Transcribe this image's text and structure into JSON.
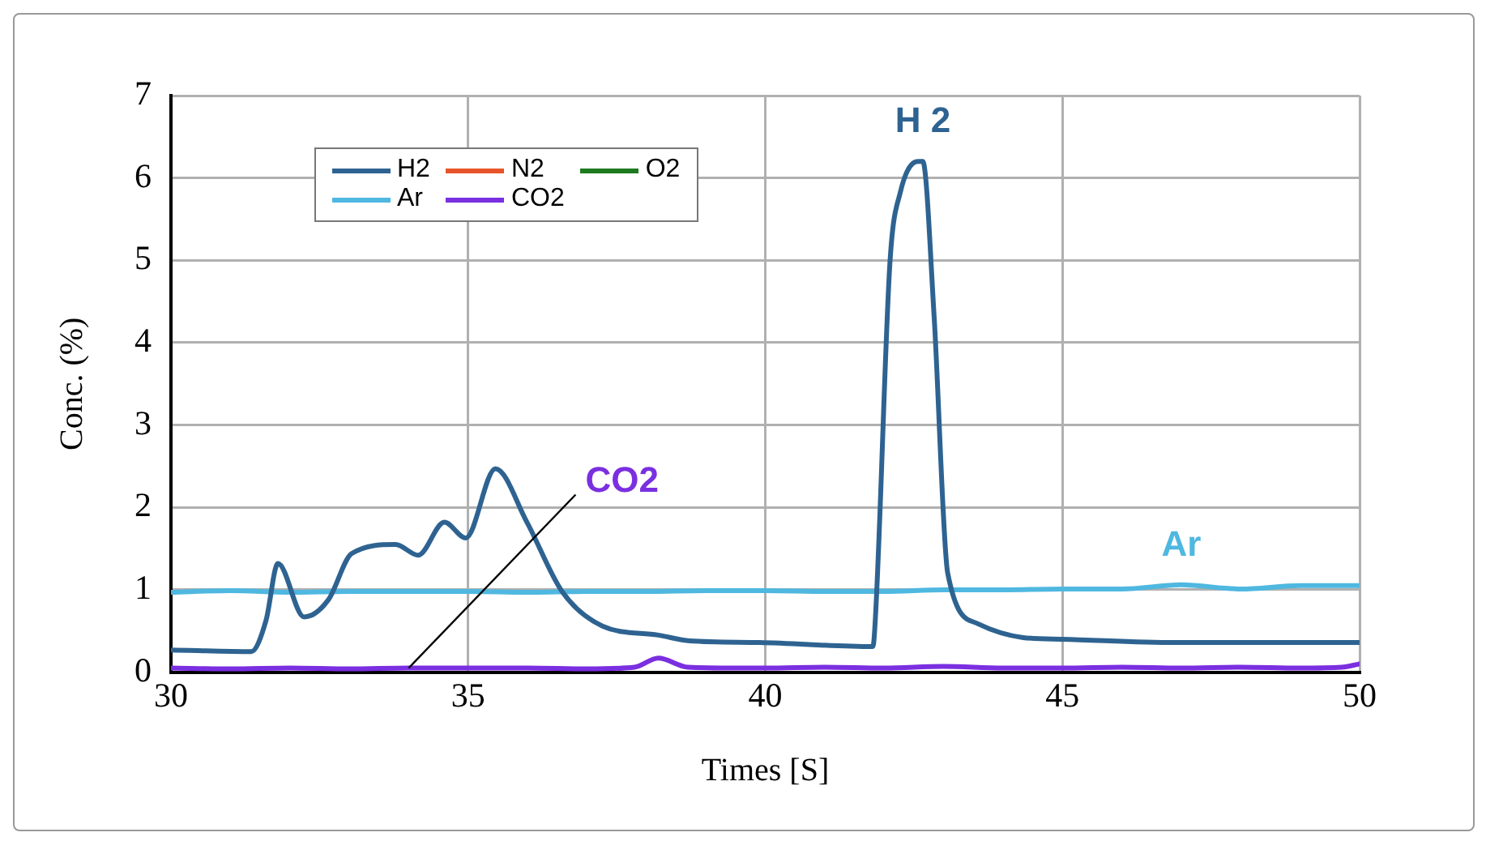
{
  "chart_data": {
    "type": "line",
    "xlabel": "Times [S]",
    "ylabel": "Conc. (%)",
    "xlim": [
      30,
      50
    ],
    "xticks": [
      30,
      35,
      40,
      45,
      50
    ],
    "ylim": [
      0,
      7
    ],
    "yticks": [
      0,
      1,
      2,
      3,
      4,
      5,
      6,
      7
    ],
    "grid": true,
    "legend": "top left",
    "marker": "none",
    "line_style": "solid",
    "series": [
      {
        "name": "H2",
        "color": "#2e6391",
        "x": [
          30,
          31.35,
          31.6,
          31.8,
          32.24,
          32.65,
          33.04,
          33.78,
          34.16,
          34.6,
          34.96,
          35.46,
          35.99,
          36.58,
          37.26,
          38.2,
          38.73,
          39.9,
          41.8,
          41.83,
          42.1,
          42.27,
          42.57,
          42.65,
          42.84,
          43.07,
          43.57,
          44.34,
          45,
          46.9,
          48.4,
          50
        ],
        "values": [
          0.27,
          0.25,
          0.63,
          1.32,
          0.67,
          0.88,
          1.44,
          1.55,
          1.42,
          1.82,
          1.63,
          2.47,
          1.82,
          0.98,
          0.56,
          0.45,
          0.38,
          0.36,
          0.31,
          0.4,
          5.0,
          5.82,
          6.2,
          6.2,
          4.33,
          1.2,
          0.59,
          0.42,
          0.4,
          0.36,
          0.36,
          0.36
        ]
      },
      {
        "name": "N2",
        "color": "#e8542a"
      },
      {
        "name": "O2",
        "color": "#1e7a1e"
      },
      {
        "name": "Ar",
        "color": "#4fb8e0",
        "x": [
          30,
          31,
          32,
          33,
          34,
          35,
          36,
          37,
          38,
          39,
          40,
          41,
          42,
          43,
          44,
          45,
          46,
          47,
          48,
          49,
          50
        ],
        "values": [
          0.97,
          0.99,
          0.97,
          0.98,
          0.98,
          0.98,
          0.97,
          0.98,
          0.98,
          0.99,
          0.99,
          0.98,
          0.98,
          1.0,
          1.0,
          1.01,
          1.01,
          1.06,
          1.01,
          1.05,
          1.05
        ]
      },
      {
        "name": "CO2",
        "color": "#7a2fe0",
        "x": [
          30,
          31,
          32,
          33,
          34,
          35,
          36,
          37,
          37.8,
          38.2,
          38.7,
          39.5,
          40,
          41,
          42,
          43,
          44,
          45,
          46,
          47,
          48,
          49,
          49.7,
          50
        ],
        "values": [
          0.05,
          0.04,
          0.05,
          0.04,
          0.05,
          0.05,
          0.05,
          0.04,
          0.06,
          0.17,
          0.06,
          0.05,
          0.05,
          0.06,
          0.05,
          0.07,
          0.05,
          0.05,
          0.06,
          0.05,
          0.06,
          0.05,
          0.06,
          0.1
        ]
      }
    ],
    "annotations": [
      {
        "text": "H 2",
        "x": 42.65,
        "y": 6.2
      },
      {
        "text": "CO2",
        "x": 34.0,
        "y": 0.05
      },
      {
        "text": "Ar",
        "x": 47,
        "y": 1.06
      }
    ]
  }
}
